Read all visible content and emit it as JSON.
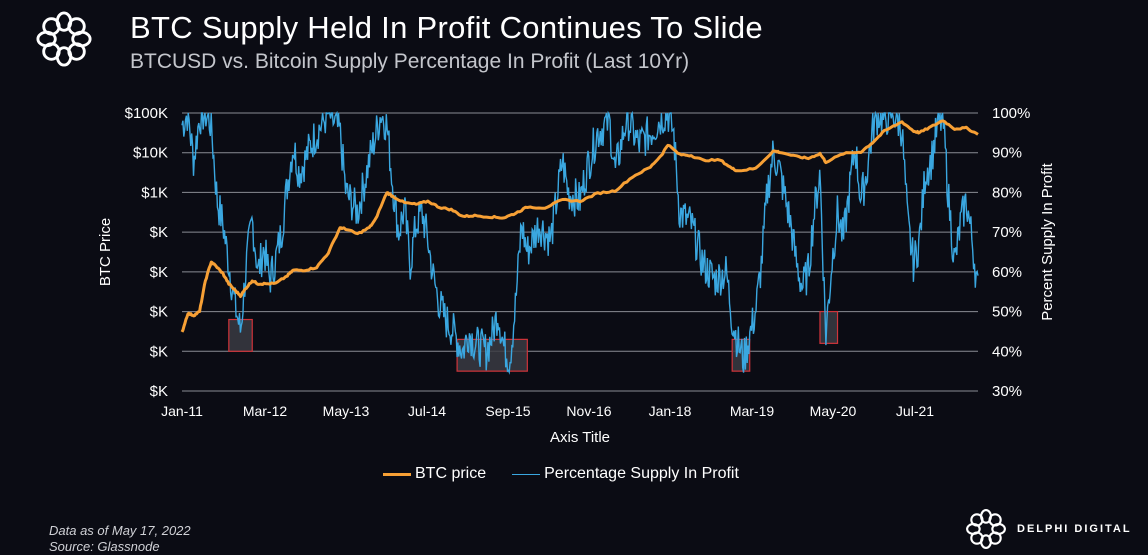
{
  "header": {
    "title": "BTC Supply Held In Profit Continues To Slide",
    "subtitle": "BTCUSD vs. Bitcoin Supply Percentage In Profit (Last 10Yr)"
  },
  "footer": {
    "data_note": "Data as of May 17, 2022",
    "source": "Source: Glassnode"
  },
  "brand": {
    "name": "DELPHI DIGITAL",
    "logo_icon": "delphi-knot-logo"
  },
  "colors": {
    "background": "#0b0c14",
    "btc_price": "#f7a035",
    "supply_profit": "#3aa7e0",
    "gridline": "#8a8c93",
    "highlight_border": "#d0343a",
    "highlight_fill": "#3a3b42"
  },
  "chart_data": {
    "type": "line",
    "title": "BTC Supply Held In Profit Continues To Slide",
    "subtitle": "BTCUSD vs. Bitcoin Supply Percentage In Profit (Last 10Yr)",
    "xlabel": "Axis Title",
    "ylabel_left": "BTC Price",
    "ylabel_right": "Percent Supply In Profit",
    "x_tick_labels": [
      "Jan-11",
      "Mar-12",
      "May-13",
      "Jul-14",
      "Sep-15",
      "Nov-16",
      "Jan-18",
      "Mar-19",
      "May-20",
      "Jul-21"
    ],
    "y_left_tick_labels": [
      "$100K",
      "$10K",
      "$1K",
      "$K",
      "$K",
      "$K",
      "$K",
      "$K"
    ],
    "y_right_tick_labels": [
      "100%",
      "90%",
      "80%",
      "70%",
      "60%",
      "50%",
      "40%",
      "30%"
    ],
    "y_right_range": [
      30,
      100
    ],
    "y_left_scale": "log",
    "x_range": [
      "2011-01",
      "2022-05"
    ],
    "grid": true,
    "legend": {
      "position": "bottom",
      "entries": [
        "BTC price",
        "Percentage Supply In Profit"
      ]
    },
    "series": [
      {
        "name": "BTC price",
        "axis": "left",
        "points": [
          [
            "2011-01",
            0.3
          ],
          [
            "2011-02",
            0.9
          ],
          [
            "2011-03",
            0.8
          ],
          [
            "2011-04",
            1.0
          ],
          [
            "2011-05",
            6
          ],
          [
            "2011-06",
            18
          ],
          [
            "2011-07",
            13
          ],
          [
            "2011-08",
            9
          ],
          [
            "2011-09",
            5
          ],
          [
            "2011-10",
            3.5
          ],
          [
            "2011-11",
            2.5
          ],
          [
            "2011-12",
            4
          ],
          [
            "2012-01",
            6
          ],
          [
            "2012-02",
            5
          ],
          [
            "2012-03",
            5
          ],
          [
            "2012-05",
            5.1
          ],
          [
            "2012-07",
            8
          ],
          [
            "2012-08",
            11
          ],
          [
            "2012-10",
            11
          ],
          [
            "2012-12",
            13
          ],
          [
            "2013-02",
            30
          ],
          [
            "2013-04",
            130
          ],
          [
            "2013-05",
            120
          ],
          [
            "2013-07",
            90
          ],
          [
            "2013-09",
            130
          ],
          [
            "2013-10",
            200
          ],
          [
            "2013-12",
            1000
          ],
          [
            "2014-01",
            800
          ],
          [
            "2014-03",
            550
          ],
          [
            "2014-05",
            500
          ],
          [
            "2014-07",
            600
          ],
          [
            "2014-09",
            420
          ],
          [
            "2014-11",
            370
          ],
          [
            "2015-01",
            250
          ],
          [
            "2015-03",
            260
          ],
          [
            "2015-06",
            240
          ],
          [
            "2015-08",
            230
          ],
          [
            "2015-10",
            300
          ],
          [
            "2015-12",
            430
          ],
          [
            "2016-03",
            410
          ],
          [
            "2016-06",
            650
          ],
          [
            "2016-09",
            600
          ],
          [
            "2016-12",
            950
          ],
          [
            "2017-03",
            1100
          ],
          [
            "2017-06",
            2500
          ],
          [
            "2017-09",
            4300
          ],
          [
            "2017-11",
            9000
          ],
          [
            "2017-12",
            16000
          ],
          [
            "2018-02",
            9000
          ],
          [
            "2018-04",
            8500
          ],
          [
            "2018-06",
            6500
          ],
          [
            "2018-09",
            6500
          ],
          [
            "2018-11",
            4000
          ],
          [
            "2018-12",
            3500
          ],
          [
            "2019-03",
            4000
          ],
          [
            "2019-06",
            11000
          ],
          [
            "2019-07",
            10500
          ],
          [
            "2019-10",
            8000
          ],
          [
            "2019-12",
            7200
          ],
          [
            "2020-02",
            9500
          ],
          [
            "2020-03",
            5800
          ],
          [
            "2020-06",
            9500
          ],
          [
            "2020-09",
            10500
          ],
          [
            "2020-11",
            18000
          ],
          [
            "2021-01",
            35000
          ],
          [
            "2021-04",
            60000
          ],
          [
            "2021-06",
            35000
          ],
          [
            "2021-07",
            32000
          ],
          [
            "2021-09",
            45000
          ],
          [
            "2021-11",
            65000
          ],
          [
            "2022-01",
            40000
          ],
          [
            "2022-03",
            42000
          ],
          [
            "2022-05",
            29000
          ]
        ]
      },
      {
        "name": "Percentage Supply In Profit",
        "axis": "right",
        "points": [
          [
            "2011-01",
            97
          ],
          [
            "2011-02",
            100
          ],
          [
            "2011-03",
            88
          ],
          [
            "2011-04",
            99
          ],
          [
            "2011-05",
            100
          ],
          [
            "2011-06",
            97
          ],
          [
            "2011-07",
            78
          ],
          [
            "2011-08",
            72
          ],
          [
            "2011-09",
            62
          ],
          [
            "2011-10",
            52
          ],
          [
            "2011-11",
            45
          ],
          [
            "2011-12",
            62
          ],
          [
            "2012-01",
            73
          ],
          [
            "2012-02",
            60
          ],
          [
            "2012-03",
            66
          ],
          [
            "2012-04",
            58
          ],
          [
            "2012-05",
            63
          ],
          [
            "2012-06",
            70
          ],
          [
            "2012-07",
            82
          ],
          [
            "2012-08",
            92
          ],
          [
            "2012-09",
            85
          ],
          [
            "2012-10",
            88
          ],
          [
            "2012-11",
            92
          ],
          [
            "2012-12",
            95
          ],
          [
            "2013-02",
            100
          ],
          [
            "2013-04",
            95
          ],
          [
            "2013-05",
            80
          ],
          [
            "2013-07",
            75
          ],
          [
            "2013-09",
            88
          ],
          [
            "2013-11",
            100
          ],
          [
            "2013-12",
            97
          ],
          [
            "2014-01",
            82
          ],
          [
            "2014-02",
            70
          ],
          [
            "2014-03",
            76
          ],
          [
            "2014-04",
            62
          ],
          [
            "2014-05",
            72
          ],
          [
            "2014-06",
            75
          ],
          [
            "2014-07",
            68
          ],
          [
            "2014-08",
            58
          ],
          [
            "2014-09",
            52
          ],
          [
            "2014-10",
            48
          ],
          [
            "2014-11",
            46
          ],
          [
            "2015-01",
            40
          ],
          [
            "2015-02",
            45
          ],
          [
            "2015-03",
            42
          ],
          [
            "2015-05",
            40
          ],
          [
            "2015-06",
            44
          ],
          [
            "2015-07",
            50
          ],
          [
            "2015-08",
            41
          ],
          [
            "2015-09",
            38
          ],
          [
            "2015-10",
            52
          ],
          [
            "2015-11",
            72
          ],
          [
            "2015-12",
            65
          ],
          [
            "2016-02",
            72
          ],
          [
            "2016-04",
            68
          ],
          [
            "2016-06",
            88
          ],
          [
            "2016-07",
            80
          ],
          [
            "2016-09",
            78
          ],
          [
            "2016-10",
            85
          ],
          [
            "2016-12",
            95
          ],
          [
            "2017-02",
            98
          ],
          [
            "2017-03",
            85
          ],
          [
            "2017-05",
            99
          ],
          [
            "2017-07",
            92
          ],
          [
            "2017-09",
            95
          ],
          [
            "2017-11",
            99
          ],
          [
            "2017-12",
            100
          ],
          [
            "2018-01",
            95
          ],
          [
            "2018-02",
            75
          ],
          [
            "2018-04",
            72
          ],
          [
            "2018-06",
            62
          ],
          [
            "2018-08",
            58
          ],
          [
            "2018-10",
            60
          ],
          [
            "2018-11",
            48
          ],
          [
            "2018-12",
            42
          ],
          [
            "2019-01",
            38
          ],
          [
            "2019-02",
            44
          ],
          [
            "2019-03",
            50
          ],
          [
            "2019-04",
            62
          ],
          [
            "2019-05",
            80
          ],
          [
            "2019-06",
            90
          ],
          [
            "2019-07",
            86
          ],
          [
            "2019-09",
            72
          ],
          [
            "2019-10",
            62
          ],
          [
            "2019-11",
            56
          ],
          [
            "2019-12",
            60
          ],
          [
            "2020-01",
            75
          ],
          [
            "2020-02",
            85
          ],
          [
            "2020-03",
            44
          ],
          [
            "2020-04",
            62
          ],
          [
            "2020-05",
            75
          ],
          [
            "2020-06",
            68
          ],
          [
            "2020-07",
            80
          ],
          [
            "2020-08",
            92
          ],
          [
            "2020-09",
            78
          ],
          [
            "2020-10",
            85
          ],
          [
            "2020-11",
            96
          ],
          [
            "2020-12",
            100
          ],
          [
            "2021-01",
            98
          ],
          [
            "2021-02",
            100
          ],
          [
            "2021-03",
            99
          ],
          [
            "2021-04",
            96
          ],
          [
            "2021-05",
            72
          ],
          [
            "2021-06",
            62
          ],
          [
            "2021-07",
            68
          ],
          [
            "2021-08",
            85
          ],
          [
            "2021-09",
            88
          ],
          [
            "2021-10",
            96
          ],
          [
            "2021-11",
            99
          ],
          [
            "2021-12",
            78
          ],
          [
            "2022-01",
            62
          ],
          [
            "2022-02",
            72
          ],
          [
            "2022-03",
            78
          ],
          [
            "2022-04",
            68
          ],
          [
            "2022-05",
            55
          ]
        ]
      }
    ],
    "highlights": [
      {
        "label": "capitulation-2011",
        "x_start": "2011-09",
        "x_end": "2012-01",
        "y_range_pct": [
          40,
          48
        ]
      },
      {
        "label": "capitulation-2015",
        "x_start": "2014-12",
        "x_end": "2015-12",
        "y_range_pct": [
          35,
          43
        ]
      },
      {
        "label": "capitulation-2019",
        "x_start": "2018-11",
        "x_end": "2019-02",
        "y_range_pct": [
          35,
          43
        ]
      },
      {
        "label": "capitulation-2020",
        "x_start": "2020-02",
        "x_end": "2020-05",
        "y_range_pct": [
          42,
          50
        ]
      }
    ]
  }
}
